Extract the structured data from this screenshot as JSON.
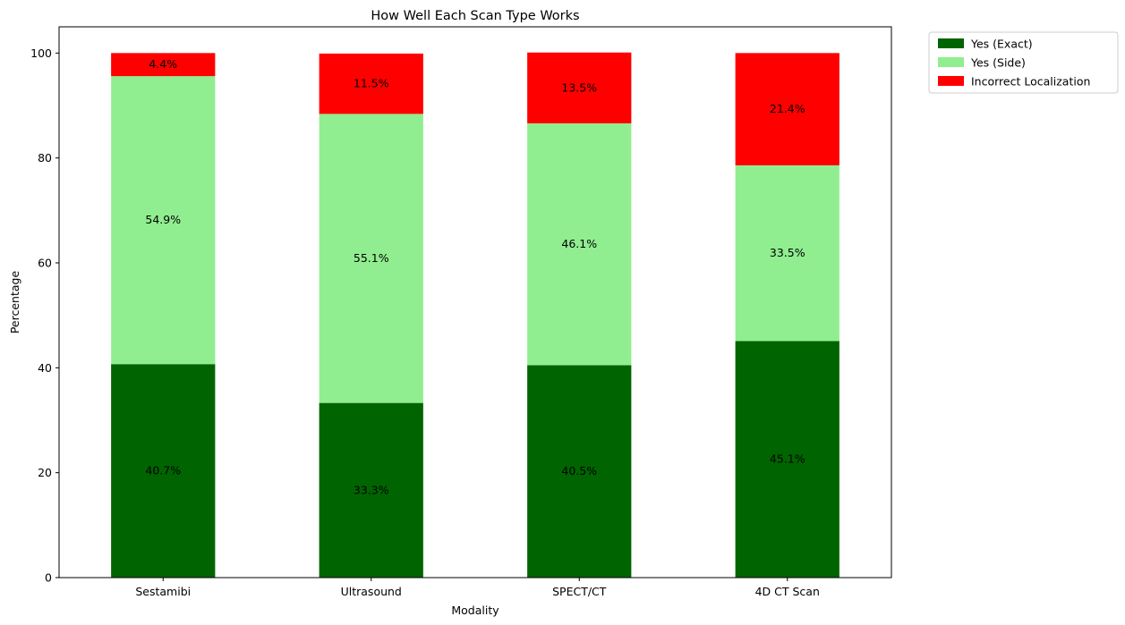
{
  "chart_data": {
    "type": "bar",
    "stacked": true,
    "title": "How Well Each Scan Type Works",
    "xlabel": "Modality",
    "ylabel": "Percentage",
    "categories": [
      "Sestamibi",
      "Ultrasound",
      "SPECT/CT",
      "4D CT Scan"
    ],
    "ylim": [
      0,
      105
    ],
    "yticks": [
      0,
      20,
      40,
      60,
      80,
      100
    ],
    "grid": false,
    "legend_position": "outside-top-right",
    "series": [
      {
        "name": "Yes (Exact)",
        "color": "#006400",
        "values": [
          40.7,
          33.3,
          40.5,
          45.1
        ],
        "labels": [
          "40.7%",
          "33.3%",
          "40.5%",
          "45.1%"
        ]
      },
      {
        "name": "Yes (Side)",
        "color": "#90ee90",
        "values": [
          54.9,
          55.1,
          46.1,
          33.5
        ],
        "labels": [
          "54.9%",
          "55.1%",
          "46.1%",
          "33.5%"
        ]
      },
      {
        "name": "Incorrect Localization",
        "color": "#ff0000",
        "values": [
          4.4,
          11.5,
          13.5,
          21.4
        ],
        "labels": [
          "4.4%",
          "11.5%",
          "13.5%",
          "21.4%"
        ]
      }
    ]
  }
}
